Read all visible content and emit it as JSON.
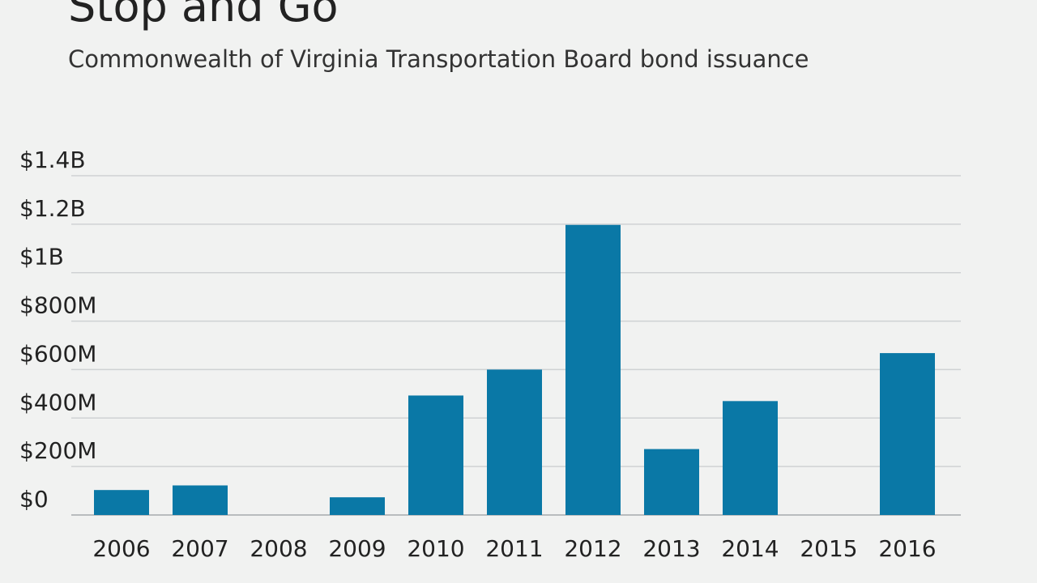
{
  "header": {
    "title": "Stop and Go",
    "subtitle": "Commonwealth of Virginia Transportation Board bond issuance"
  },
  "colors": {
    "bar": "#0a78a6",
    "grid": "#cfd2d4",
    "baseline": "#b9bcbe",
    "background": "#f1f2f1"
  },
  "chart_data": {
    "type": "bar",
    "title": "Stop and Go",
    "subtitle": "Commonwealth of Virginia Transportation Board bond issuance",
    "xlabel": "",
    "ylabel": "",
    "categories": [
      "2006",
      "2007",
      "2008",
      "2009",
      "2010",
      "2011",
      "2012",
      "2013",
      "2014",
      "2015",
      "2016"
    ],
    "values": [
      103,
      122,
      0,
      73,
      493,
      600,
      1197,
      272,
      470,
      0,
      668
    ],
    "unit": "millions of dollars",
    "ylim": [
      0,
      1400
    ],
    "yticks": [
      0,
      200,
      400,
      600,
      800,
      1000,
      1200,
      1400
    ],
    "ytick_labels": [
      "$0",
      "$200M",
      "$400M",
      "$600M",
      "$800M",
      "$1B",
      "$1.2B",
      "$1.4B"
    ],
    "grid": true,
    "legend": "none"
  }
}
